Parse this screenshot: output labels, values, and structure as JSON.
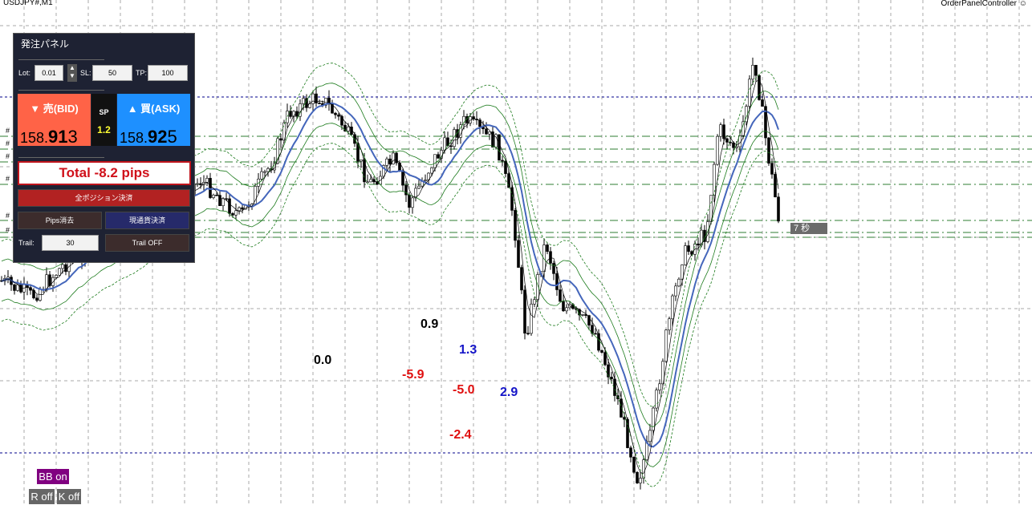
{
  "chart_header": {
    "symbol": "USDJPY#,M1",
    "ea_name": "OrderPanelController ☺"
  },
  "panel": {
    "title": "発注パネル",
    "lot_label": "Lot:",
    "lot_value": "0.01",
    "sl_label": "SL:",
    "sl_value": "50",
    "tp_label": "TP:",
    "tp_value": "100",
    "bid_label": "▼ 売(BID)",
    "bid_price_prefix": "158.",
    "bid_price_big": "91",
    "bid_price_last": "3",
    "sp_label": "SP",
    "sp_value": "1.2",
    "ask_label": "▲ 買(ASK)",
    "ask_price_prefix": "158.",
    "ask_price_big": "92",
    "ask_price_last": "5",
    "total": "Total  -8.2 pips",
    "close_all": "全ポジション決済",
    "pips_clear": "Pips消去",
    "close_current": "現通貨決済",
    "trail_label": "Trail:",
    "trail_value": "30",
    "trail_toggle": "Trail OFF",
    "colors": {
      "bid": "#ff6347",
      "ask": "#1e90ff",
      "sp_value": "#ffff33",
      "total": "#d0101a"
    }
  },
  "annotations": [
    {
      "text": "0.9",
      "color": "#000000"
    },
    {
      "text": "1.3",
      "color": "#1515c8"
    },
    {
      "text": "0.0",
      "color": "#000000"
    },
    {
      "text": "-5.9",
      "color": "#e01010"
    },
    {
      "text": "-5.0",
      "color": "#e01010"
    },
    {
      "text": "2.9",
      "color": "#1515c8"
    },
    {
      "text": "-2.4",
      "color": "#e01010"
    }
  ],
  "timer": "7 秒",
  "toggles": {
    "bb": "BB on",
    "r": "R off",
    "k": "K off"
  },
  "line_markers": [
    "#",
    "#",
    "#",
    "#",
    "#",
    "#"
  ]
}
